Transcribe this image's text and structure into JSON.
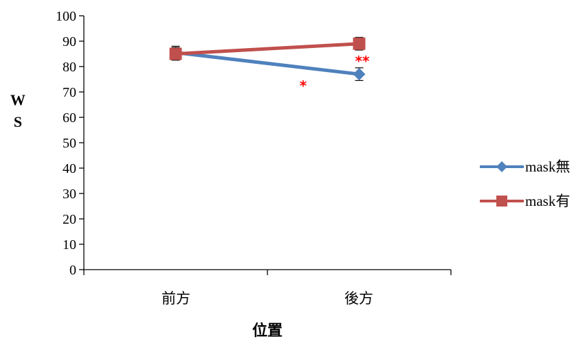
{
  "chart_data": {
    "type": "line",
    "categories": [
      "前方",
      "後方"
    ],
    "xlabel": "位置",
    "ylabel": "WS",
    "ylim": [
      0,
      100
    ],
    "yticks": [
      0,
      10,
      20,
      30,
      40,
      50,
      60,
      70,
      80,
      90,
      100
    ],
    "grid": false,
    "legend_position": "right",
    "series": [
      {
        "name": "mask無",
        "color": "#4f81bd",
        "marker": "diamond",
        "values": [
          85.5,
          77
        ],
        "errors": [
          2.5,
          2.5
        ]
      },
      {
        "name": "mask有",
        "color": "#c0504d",
        "marker": "square",
        "values": [
          85,
          89
        ],
        "errors": [
          2.5,
          2.5
        ]
      }
    ],
    "annotations": [
      {
        "text": "*",
        "color": "#ff0000"
      },
      {
        "text": "**",
        "color": "#ff0000"
      }
    ]
  }
}
